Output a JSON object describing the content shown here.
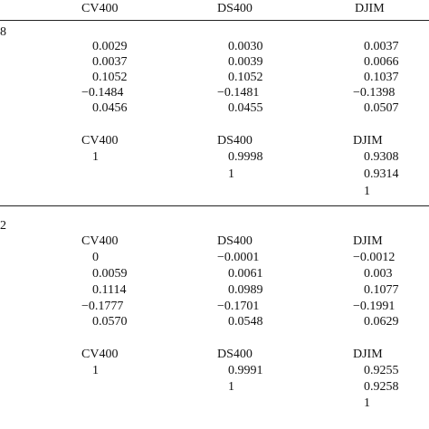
{
  "header": {
    "c1": "CV400",
    "c2": "DS400",
    "c3": "DJIM"
  },
  "panel1": {
    "label": "8",
    "stats": [
      {
        "c1": "0.0029",
        "c2": "0.0030",
        "c3": "0.0037"
      },
      {
        "c1": "0.0037",
        "c2": "0.0039",
        "c3": "0.0066"
      },
      {
        "c1": "0.1052",
        "c2": "0.1052",
        "c3": "0.1037"
      },
      {
        "c1": "−0.1484",
        "c2": "−0.1481",
        "c3": "−0.1398"
      },
      {
        "c1": "0.0456",
        "c2": "0.0455",
        "c3": "0.0507"
      }
    ],
    "corr_header": {
      "c1": "CV400",
      "c2": "DS400",
      "c3": "DJIM"
    },
    "corr": [
      {
        "c1": "1",
        "c2": "0.9998",
        "c3": "0.9308"
      },
      {
        "c2": "1",
        "c3": "0.9314"
      },
      {
        "c3": "1"
      }
    ]
  },
  "panel2": {
    "label": "2",
    "stats_header": {
      "c1": "CV400",
      "c2": "DS400",
      "c3": "DJIM"
    },
    "stats": [
      {
        "c1": "0",
        "c2": "−0.0001",
        "c3": "−0.0012"
      },
      {
        "c1": "0.0059",
        "c2": "0.0061",
        "c3": "0.003"
      },
      {
        "c1": "0.1114",
        "c2": "0.0989",
        "c3": "0.1077"
      },
      {
        "c1": "−0.1777",
        "c2": "−0.1701",
        "c3": "−0.1991"
      },
      {
        "c1": "0.0570",
        "c2": "0.0548",
        "c3": "0.0629"
      }
    ],
    "corr_header": {
      "c1": "CV400",
      "c2": "DS400",
      "c3": "DJIM"
    },
    "corr": [
      {
        "c1": "1",
        "c2": "0.9991",
        "c3": "0.9255"
      },
      {
        "c2": "1",
        "c3": "0.9258"
      },
      {
        "c3": "1"
      }
    ]
  }
}
